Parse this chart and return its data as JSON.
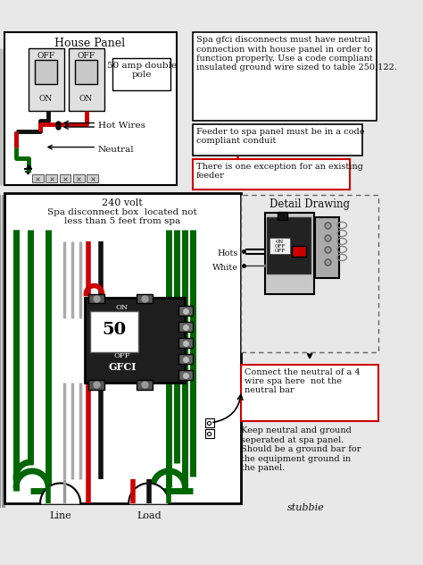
{
  "bg_color": "#e8e8e8",
  "house_panel_label": "House Panel",
  "amp_label": "50 amp double\npole",
  "hot_wires_label": "Hot Wires",
  "neutral_label": "Neutral",
  "spa_note1": "Spa gfci disconnects must have neutral\nconnection with house panel in order to\nfunction properly. Use a code compliant\ninsulated ground wire sized to table 250.122.",
  "spa_note2": "Feeder to spa panel must be in a code\ncompliant conduit",
  "spa_note3": "There is one exception for an existing\nfeeder",
  "disconnect_title1": "240 volt",
  "disconnect_title2": "Spa disconnect box  located not\nless than 5 feet from spa",
  "gfci_label": "GFCI",
  "amp50_label": "50",
  "on_label": "ON",
  "off_label": "OFF",
  "detail_label": "Detail Drawing",
  "hots_label": "Hots",
  "white_label": "White",
  "note4": "Connect the neutral of a 4\nwire spa here  not the\nneutral bar",
  "note5": "Keep neutral and ground\nseperated at spa panel.\nShould be a ground bar for\nthe equipment ground in\nthe panel.",
  "line_label": "Line",
  "load_label": "Load",
  "stubbie_label": "stubbie",
  "wire_red": "#cc0000",
  "wire_black": "#111111",
  "wire_green": "#006600",
  "wire_white": "#bbbbbb",
  "red_box": "#cc0000",
  "text_color": "#111111"
}
